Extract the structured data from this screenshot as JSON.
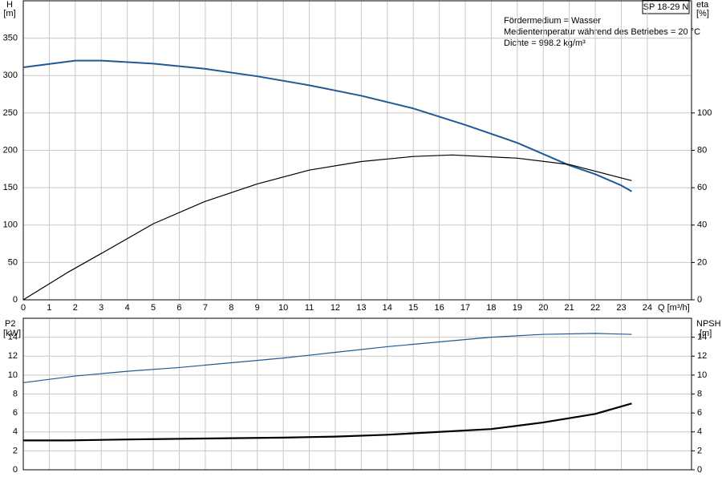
{
  "chart_data": [
    {
      "type": "line",
      "label": "SP 18-29 N",
      "annotations": [
        "Fördermedium = Wasser",
        "Medientemperatur während des Betriebes = 20 °C",
        "Dichte = 998.2 kg/m³"
      ],
      "x_label": "Q [m³/h]",
      "y_label": "H",
      "y_unit": "[m]",
      "y2_label": "eta",
      "y2_unit": "[%]",
      "xlim": [
        0,
        25.7
      ],
      "xticks": [
        0,
        1,
        2,
        3,
        4,
        5,
        6,
        7,
        8,
        9,
        10,
        11,
        12,
        13,
        14,
        15,
        16,
        17,
        18,
        19,
        20,
        21,
        22,
        23,
        24
      ],
      "ylim": [
        0,
        400
      ],
      "yticks": [
        0,
        50,
        100,
        150,
        200,
        250,
        300,
        350
      ],
      "y2lim": [
        0,
        160
      ],
      "y2ticks": [
        0,
        20,
        40,
        60,
        80,
        100
      ],
      "grid": true,
      "series": [
        {
          "color": "#1f5a96",
          "width": 2,
          "x": [
            0,
            2,
            3,
            5,
            7,
            9,
            11,
            13,
            15,
            17,
            19,
            20,
            21,
            22,
            23,
            23.4
          ],
          "values": [
            311,
            320,
            320,
            316,
            309,
            299,
            287,
            273,
            256,
            234,
            210,
            195,
            180,
            168,
            153,
            145
          ]
        },
        {
          "color": "#000000",
          "width": 1.2,
          "axis": "y2",
          "x": [
            0,
            1.7,
            3,
            5,
            7,
            9,
            11,
            13,
            15,
            16.5,
            19,
            21,
            23.4
          ],
          "values": [
            0,
            14.6,
            24.8,
            40.7,
            52.7,
            62,
            69.4,
            74,
            76.7,
            77.5,
            75.8,
            72.4,
            63.8
          ]
        }
      ]
    },
    {
      "type": "line",
      "y_label": "P2",
      "y_unit": "[kW]",
      "y2_label": "NPSH",
      "y2_unit": "[m]",
      "xlim": [
        0,
        25.7
      ],
      "ylim": [
        0,
        16
      ],
      "yticks": [
        0,
        2,
        4,
        6,
        8,
        10,
        12,
        14
      ],
      "y2lim": [
        0,
        16
      ],
      "y2ticks": [
        0,
        2,
        4,
        6,
        8,
        10,
        12,
        14
      ],
      "grid": true,
      "series": [
        {
          "color": "#1f5a96",
          "width": 1.2,
          "x": [
            0,
            2,
            4,
            6,
            8,
            10,
            12,
            14,
            16,
            18,
            20,
            22,
            23.4
          ],
          "values": [
            9.2,
            9.9,
            10.4,
            10.8,
            11.3,
            11.8,
            12.4,
            13.0,
            13.5,
            14.0,
            14.3,
            14.4,
            14.3
          ]
        },
        {
          "color": "#000000",
          "width": 2.2,
          "axis": "y2",
          "x": [
            0,
            1.7,
            4,
            7,
            10,
            12,
            14,
            16,
            18,
            20,
            22,
            23.4
          ],
          "values": [
            3.1,
            3.1,
            3.2,
            3.3,
            3.4,
            3.5,
            3.7,
            4.0,
            4.3,
            5.0,
            5.9,
            7.0
          ]
        }
      ]
    }
  ]
}
